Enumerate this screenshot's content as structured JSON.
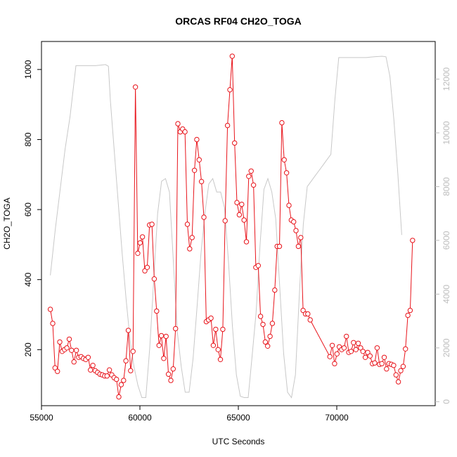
{
  "chart_data": {
    "type": "line",
    "title": "ORCAS RF04 CH2O_TOGA",
    "xlabel": "UTC Seconds",
    "ylabel": "CH2O_TOGA",
    "xlim": [
      55000,
      75000
    ],
    "ylim": [
      40,
      1080
    ],
    "y2lim": [
      -150,
      13400
    ],
    "x_ticks": [
      55000,
      60000,
      65000,
      70000
    ],
    "y_ticks": [
      200,
      400,
      600,
      800,
      1000
    ],
    "y2_ticks": [
      0,
      2000,
      4000,
      6000,
      8000,
      10000,
      12000
    ],
    "colors": {
      "primary": "#e8141b",
      "secondary": "#c8c8c8"
    },
    "series": [
      {
        "role": "primary",
        "marker": "open-circle",
        "x": [
          55450,
          55570,
          55690,
          55810,
          55930,
          56050,
          56170,
          56290,
          56410,
          56530,
          56650,
          56770,
          56890,
          57010,
          57130,
          57250,
          57370,
          57490,
          57610,
          57730,
          57850,
          57970,
          58090,
          58210,
          58330,
          58450,
          58570,
          58690,
          58810,
          58930,
          59050,
          59170,
          59290,
          59410,
          59530,
          59650,
          59770,
          59890,
          60010,
          60130,
          60250,
          60370,
          60490,
          60610,
          60730,
          60850,
          60970,
          61090,
          61210,
          61330,
          61450,
          61570,
          61690,
          61810,
          61930,
          62050,
          62170,
          62290,
          62410,
          62530,
          62650,
          62770,
          62890,
          63010,
          63130,
          63250,
          63370,
          63490,
          63610,
          63730,
          63850,
          63970,
          64090,
          64210,
          64330,
          64450,
          64570,
          64690,
          64810,
          64930,
          65050,
          65170,
          65290,
          65410,
          65530,
          65650,
          65770,
          65890,
          66010,
          66130,
          66250,
          66370,
          66490,
          66610,
          66730,
          66850,
          66970,
          67090,
          67210,
          67330,
          67450,
          67570,
          67690,
          67810,
          67930,
          68050,
          68170,
          68290,
          68410,
          68530,
          68650,
          69650,
          69770,
          69890,
          70010,
          70130,
          70250,
          70370,
          70490,
          70610,
          70730,
          70850,
          70970,
          71090,
          71210,
          71330,
          71450,
          71570,
          71690,
          71810,
          71930,
          72050,
          72170,
          72290,
          72410,
          72530,
          72650,
          72770,
          72890,
          73010,
          73130,
          73250,
          73370,
          73490,
          73610,
          73730,
          73850
        ],
        "y": [
          315,
          275,
          148,
          138,
          222,
          195,
          200,
          205,
          230,
          198,
          165,
          198,
          178,
          180,
          175,
          172,
          178,
          142,
          155,
          140,
          135,
          130,
          128,
          125,
          125,
          142,
          128,
          120,
          115,
          65,
          100,
          112,
          168,
          255,
          140,
          195,
          950,
          475,
          505,
          522,
          425,
          435,
          556,
          558,
          402,
          310,
          212,
          240,
          175,
          238,
          130,
          112,
          145,
          260,
          845,
          822,
          830,
          822,
          558,
          488,
          520,
          712,
          800,
          742,
          680,
          578,
          280,
          285,
          290,
          212,
          258,
          200,
          172,
          258,
          568,
          840,
          942,
          1038,
          790,
          620,
          585,
          615,
          570,
          508,
          695,
          710,
          670,
          435,
          440,
          295,
          272,
          222,
          210,
          238,
          275,
          370,
          495,
          495,
          848,
          742,
          705,
          612,
          570,
          565,
          540,
          495,
          520,
          312,
          302,
          302,
          285,
          180,
          212,
          160,
          188,
          208,
          200,
          205,
          238,
          192,
          195,
          220,
          200,
          218,
          205,
          195,
          178,
          192,
          182,
          160,
          162,
          205,
          158,
          160,
          178,
          145,
          160,
          158,
          155,
          128,
          108,
          140,
          152,
          202,
          298,
          312,
          512
        ]
      },
      {
        "role": "secondary",
        "axis": "right",
        "x": [
          55450,
          55700,
          55950,
          56200,
          56450,
          56750,
          57000,
          57250,
          57500,
          57750,
          58000,
          58250,
          58400,
          58500,
          58700,
          58900,
          59100,
          59300,
          59500,
          59700,
          59900,
          60100,
          60300,
          60500,
          60700,
          60900,
          61100,
          61300,
          61500,
          61700,
          61900,
          62100,
          62300,
          62500,
          62700,
          62900,
          63100,
          63300,
          63500,
          63700,
          63900,
          64100,
          64300,
          64500,
          64700,
          64900,
          65100,
          65300,
          65500,
          65700,
          65900,
          66100,
          66300,
          66500,
          66700,
          66900,
          67100,
          67300,
          67500,
          67700,
          67900,
          68100,
          68300,
          68500,
          68700,
          68900,
          69100,
          69300,
          69500,
          69700,
          69900,
          70100,
          70300,
          70500,
          70700,
          70900,
          71100,
          71300,
          71500,
          71700,
          71900,
          72100,
          72300,
          72500,
          72700,
          72900,
          73100,
          73300
        ],
        "y": [
          4700,
          6400,
          7900,
          9400,
          10600,
          12500,
          12500,
          12500,
          12500,
          12500,
          12520,
          12540,
          12480,
          11200,
          9300,
          7400,
          5500,
          3800,
          2300,
          1300,
          600,
          150,
          150,
          2000,
          4500,
          7000,
          8200,
          8300,
          7800,
          5200,
          2600,
          1300,
          350,
          350,
          1600,
          3500,
          5500,
          7000,
          8100,
          8300,
          7800,
          7800,
          7200,
          5200,
          2800,
          1000,
          200,
          150,
          150,
          1700,
          3300,
          5800,
          7900,
          8300,
          7800,
          6800,
          4300,
          1800,
          350,
          150,
          1000,
          4000,
          6600,
          8000,
          8200,
          8400,
          8600,
          8800,
          9000,
          9200,
          11200,
          12800,
          12800,
          12800,
          12800,
          12800,
          12800,
          12800,
          12800,
          12820,
          12830,
          12840,
          12850,
          12830,
          12100,
          10500,
          8500,
          6200
        ]
      }
    ]
  }
}
